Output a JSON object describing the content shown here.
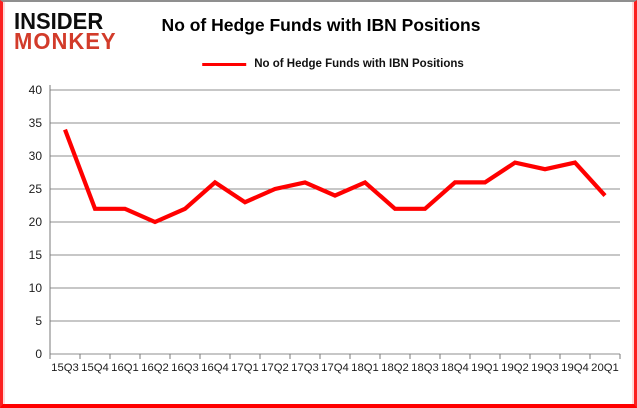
{
  "logo": {
    "line1": "INSIDER",
    "line2": "MONKEY"
  },
  "header": {
    "title": "No of Hedge Funds with IBN Positions"
  },
  "legend": {
    "label": "No of Hedge Funds with IBN Positions"
  },
  "colors": {
    "series_red": "#ff0000",
    "gridline": "#8f8f8f",
    "axis": "#7a7a7a",
    "tick_text": "#1c1c1c",
    "logo_red": "#d23b2a",
    "frame_red": "#ff0000",
    "frame_gray": "#8f8f8f"
  },
  "chart_data": {
    "type": "line",
    "title": "No of Hedge Funds with IBN Positions",
    "categories": [
      "15Q3",
      "15Q4",
      "16Q1",
      "16Q2",
      "16Q3",
      "16Q4",
      "17Q1",
      "17Q2",
      "17Q3",
      "17Q4",
      "18Q1",
      "18Q2",
      "18Q3",
      "18Q4",
      "19Q1",
      "19Q2",
      "19Q3",
      "19Q4",
      "20Q1"
    ],
    "series": [
      {
        "name": "No of Hedge Funds with IBN Positions",
        "color": "#ff0000",
        "values": [
          34,
          22,
          22,
          20,
          22,
          26,
          23,
          25,
          26,
          24,
          26,
          22,
          22,
          26,
          26,
          29,
          28,
          29,
          24
        ]
      }
    ],
    "xlabel": "",
    "ylabel": "",
    "ylim": [
      0,
      40
    ],
    "yticks": [
      0,
      5,
      10,
      15,
      20,
      25,
      30,
      35,
      40
    ],
    "grid": "horizontal",
    "legend_position": "top"
  }
}
